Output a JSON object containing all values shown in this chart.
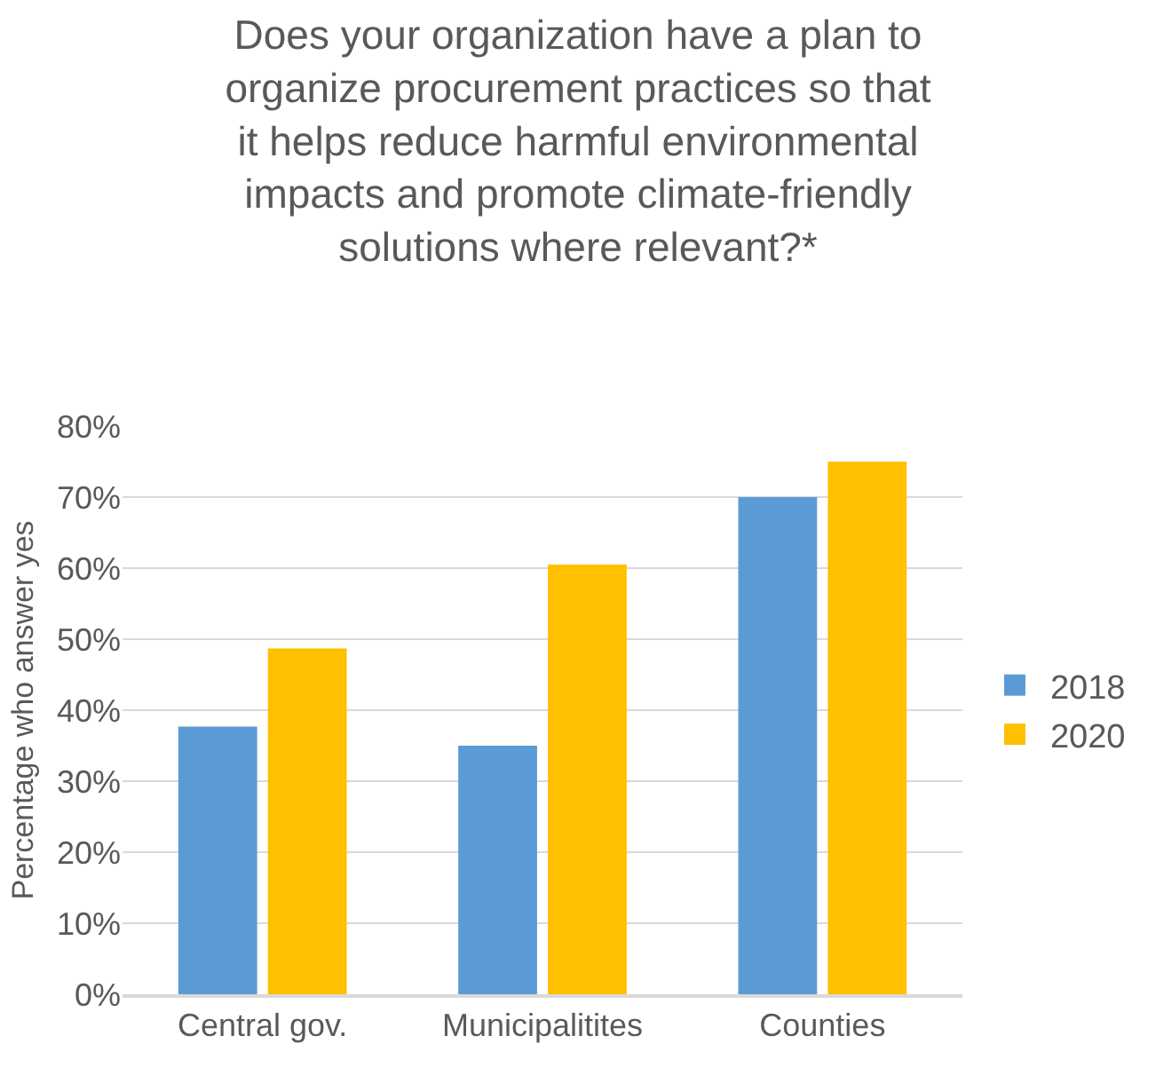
{
  "chart_data": {
    "type": "bar",
    "title": "Does your organization have a plan to\norganize procurement practices so that\nit helps reduce harmful environmental\nimpacts and promote climate-friendly\nsolutions where relevant?*",
    "ylabel": "Percentage who answer yes",
    "categories": [
      "Central gov.",
      "Municipalitites",
      "Counties"
    ],
    "series": [
      {
        "name": "2018",
        "color": "#5b9bd5",
        "values": [
          37.7,
          35,
          70
        ]
      },
      {
        "name": "2020",
        "color": "#ffc000",
        "values": [
          48.7,
          60.5,
          75
        ]
      }
    ],
    "ylim": [
      0,
      80
    ],
    "yticks": [
      {
        "value": 0,
        "label": "0%"
      },
      {
        "value": 10,
        "label": "10%"
      },
      {
        "value": 20,
        "label": "20%"
      },
      {
        "value": 30,
        "label": "30%"
      },
      {
        "value": 40,
        "label": "40%"
      },
      {
        "value": 50,
        "label": "50%"
      },
      {
        "value": 60,
        "label": "60%"
      },
      {
        "value": 70,
        "label": "70%"
      },
      {
        "value": 80,
        "label": "80%"
      }
    ],
    "grid": "y",
    "legend": "right"
  }
}
